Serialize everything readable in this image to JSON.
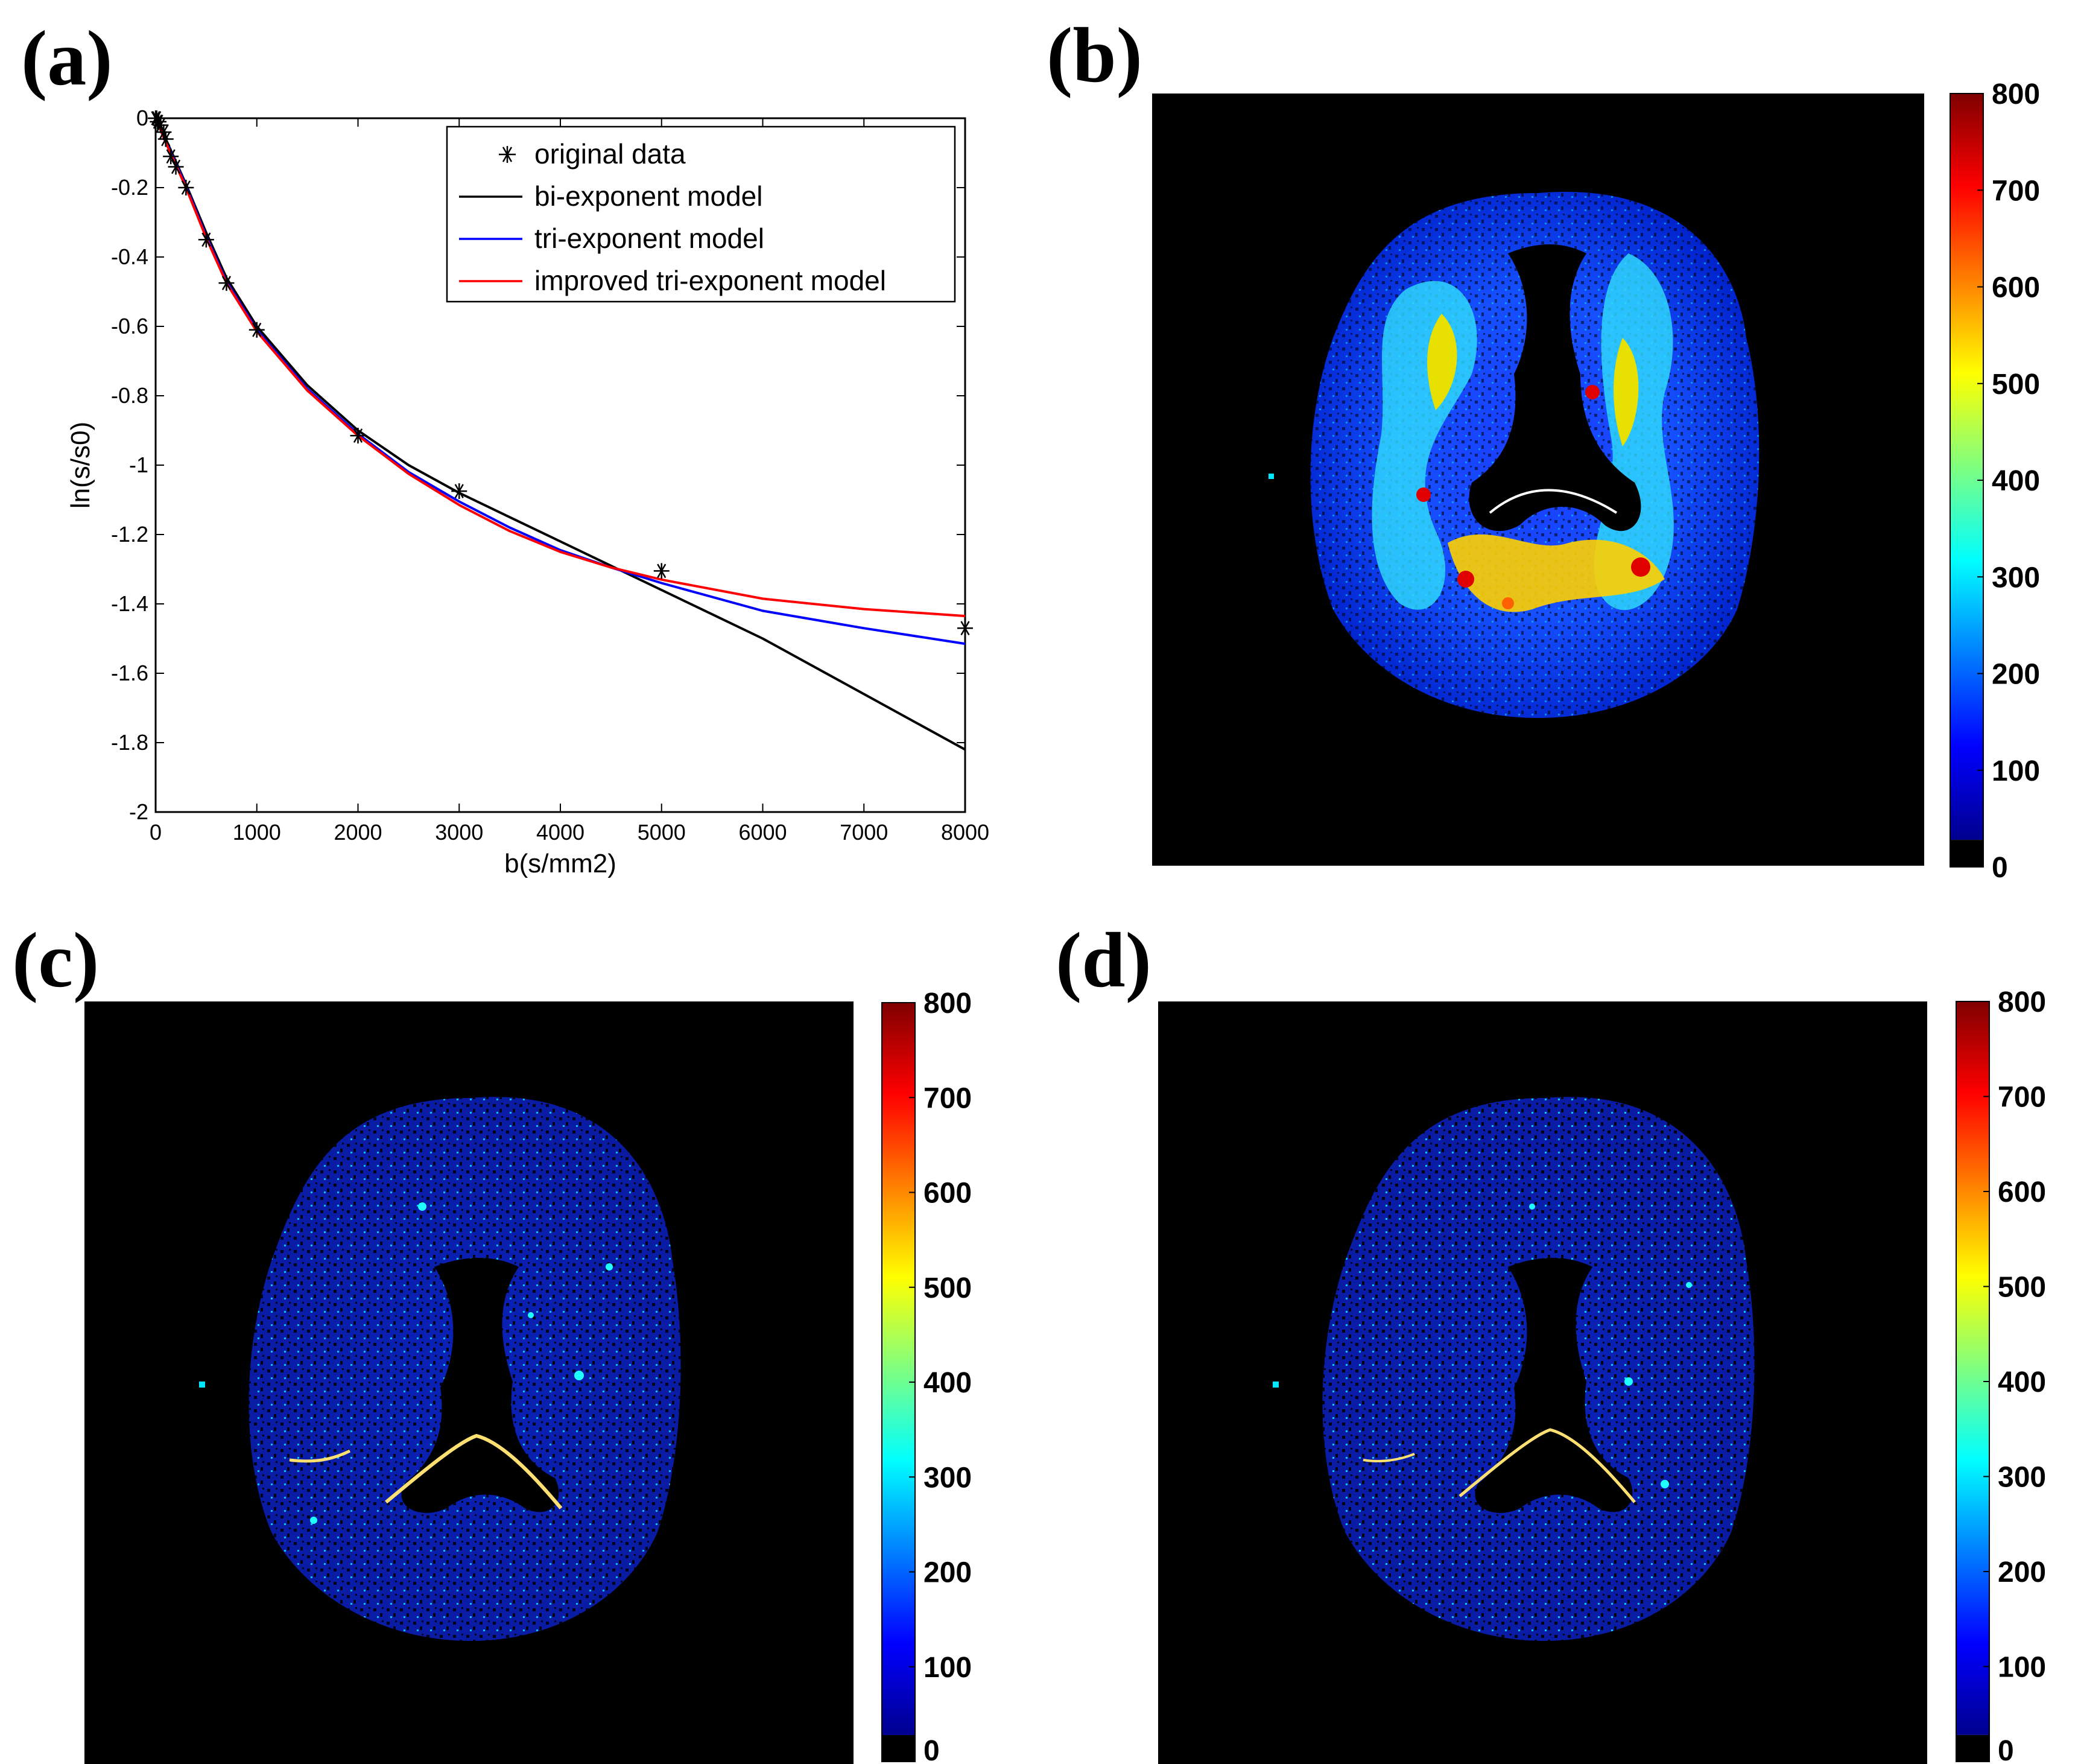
{
  "panels": {
    "a": {
      "letter": "(a)"
    },
    "b": {
      "letter": "(b)"
    },
    "c": {
      "letter": "(c)"
    },
    "d": {
      "letter": "(d)"
    }
  },
  "chart_data": [
    {
      "type": "line",
      "panel": "(a)",
      "title": "",
      "xlabel": "b(s/mm2)",
      "ylabel": "ln(s/s0)",
      "xlim": [
        0,
        8000
      ],
      "ylim": [
        -2,
        0
      ],
      "xticks": [
        0,
        1000,
        2000,
        3000,
        4000,
        5000,
        6000,
        7000,
        8000
      ],
      "yticks": [
        0,
        -0.2,
        -0.4,
        -0.6,
        -0.8,
        -1,
        -1.2,
        -1.4,
        -1.6,
        -1.8,
        -2
      ],
      "ytick_labels": [
        "0",
        "-0.2",
        "-0.4",
        "-0.6",
        "-0.8",
        "-1",
        "-1.2",
        "-1.4",
        "-1.6",
        "-1.8",
        "-2"
      ],
      "grid": false,
      "legend_position": "top-right",
      "series": [
        {
          "name": "original data",
          "kind": "scatter",
          "marker": "asterisk",
          "color": "#000000",
          "x": [
            0,
            10,
            20,
            30,
            50,
            80,
            100,
            150,
            200,
            300,
            500,
            700,
            1000,
            2000,
            3000,
            5000,
            8000
          ],
          "y": [
            0,
            0,
            -0.01,
            -0.01,
            -0.02,
            -0.04,
            -0.06,
            -0.11,
            -0.14,
            -0.2,
            -0.35,
            -0.475,
            -0.61,
            -0.915,
            -1.075,
            -1.305,
            -1.47
          ]
        },
        {
          "name": "bi-exponent model",
          "kind": "line",
          "color": "#000000",
          "x": [
            0,
            100,
            200,
            300,
            500,
            700,
            1000,
            1500,
            2000,
            2500,
            3000,
            3500,
            4000,
            4500,
            5000,
            6000,
            7000,
            8000
          ],
          "y": [
            0,
            -0.06,
            -0.125,
            -0.19,
            -0.33,
            -0.46,
            -0.6,
            -0.77,
            -0.9,
            -1.0,
            -1.08,
            -1.15,
            -1.22,
            -1.29,
            -1.36,
            -1.5,
            -1.66,
            -1.82
          ]
        },
        {
          "name": "tri-exponent model",
          "kind": "line",
          "color": "#0000ff",
          "x": [
            0,
            100,
            200,
            300,
            500,
            700,
            1000,
            1500,
            2000,
            2500,
            3000,
            3500,
            4000,
            4500,
            5000,
            6000,
            7000,
            8000
          ],
          "y": [
            0,
            -0.065,
            -0.13,
            -0.195,
            -0.34,
            -0.47,
            -0.61,
            -0.78,
            -0.91,
            -1.02,
            -1.105,
            -1.18,
            -1.245,
            -1.295,
            -1.34,
            -1.42,
            -1.47,
            -1.515
          ]
        },
        {
          "name": "improved tri-exponent model",
          "kind": "line",
          "color": "#ff0000",
          "x": [
            0,
            100,
            200,
            300,
            500,
            700,
            1000,
            1500,
            2000,
            2500,
            3000,
            3500,
            4000,
            4500,
            5000,
            6000,
            7000,
            8000
          ],
          "y": [
            0,
            -0.07,
            -0.135,
            -0.2,
            -0.345,
            -0.475,
            -0.615,
            -0.785,
            -0.915,
            -1.025,
            -1.115,
            -1.19,
            -1.25,
            -1.295,
            -1.33,
            -1.385,
            -1.415,
            -1.435
          ]
        }
      ]
    },
    {
      "type": "heatmap",
      "panel": "(b)",
      "colormap": "jet",
      "colorbar_range": [
        0,
        800
      ],
      "colorbar_ticks": [
        "0",
        "100",
        "200",
        "300",
        "400",
        "500",
        "600",
        "700",
        "800"
      ],
      "description_colors": {
        "background": "#000000",
        "low": "#0020c8",
        "high": "#b40000"
      }
    },
    {
      "type": "heatmap",
      "panel": "(c)",
      "colormap": "jet",
      "colorbar_range": [
        0,
        800
      ],
      "colorbar_ticks": [
        "0",
        "100",
        "200",
        "300",
        "400",
        "500",
        "600",
        "700",
        "800"
      ],
      "description_colors": {
        "background": "#000000",
        "low": "#0a1ea6"
      }
    },
    {
      "type": "heatmap",
      "panel": "(d)",
      "colormap": "jet",
      "colorbar_range": [
        0,
        800
      ],
      "colorbar_ticks": [
        "0",
        "100",
        "200",
        "300",
        "400",
        "500",
        "600",
        "700",
        "800"
      ],
      "description_colors": {
        "background": "#000000",
        "low": "#0a1ea6"
      }
    }
  ]
}
